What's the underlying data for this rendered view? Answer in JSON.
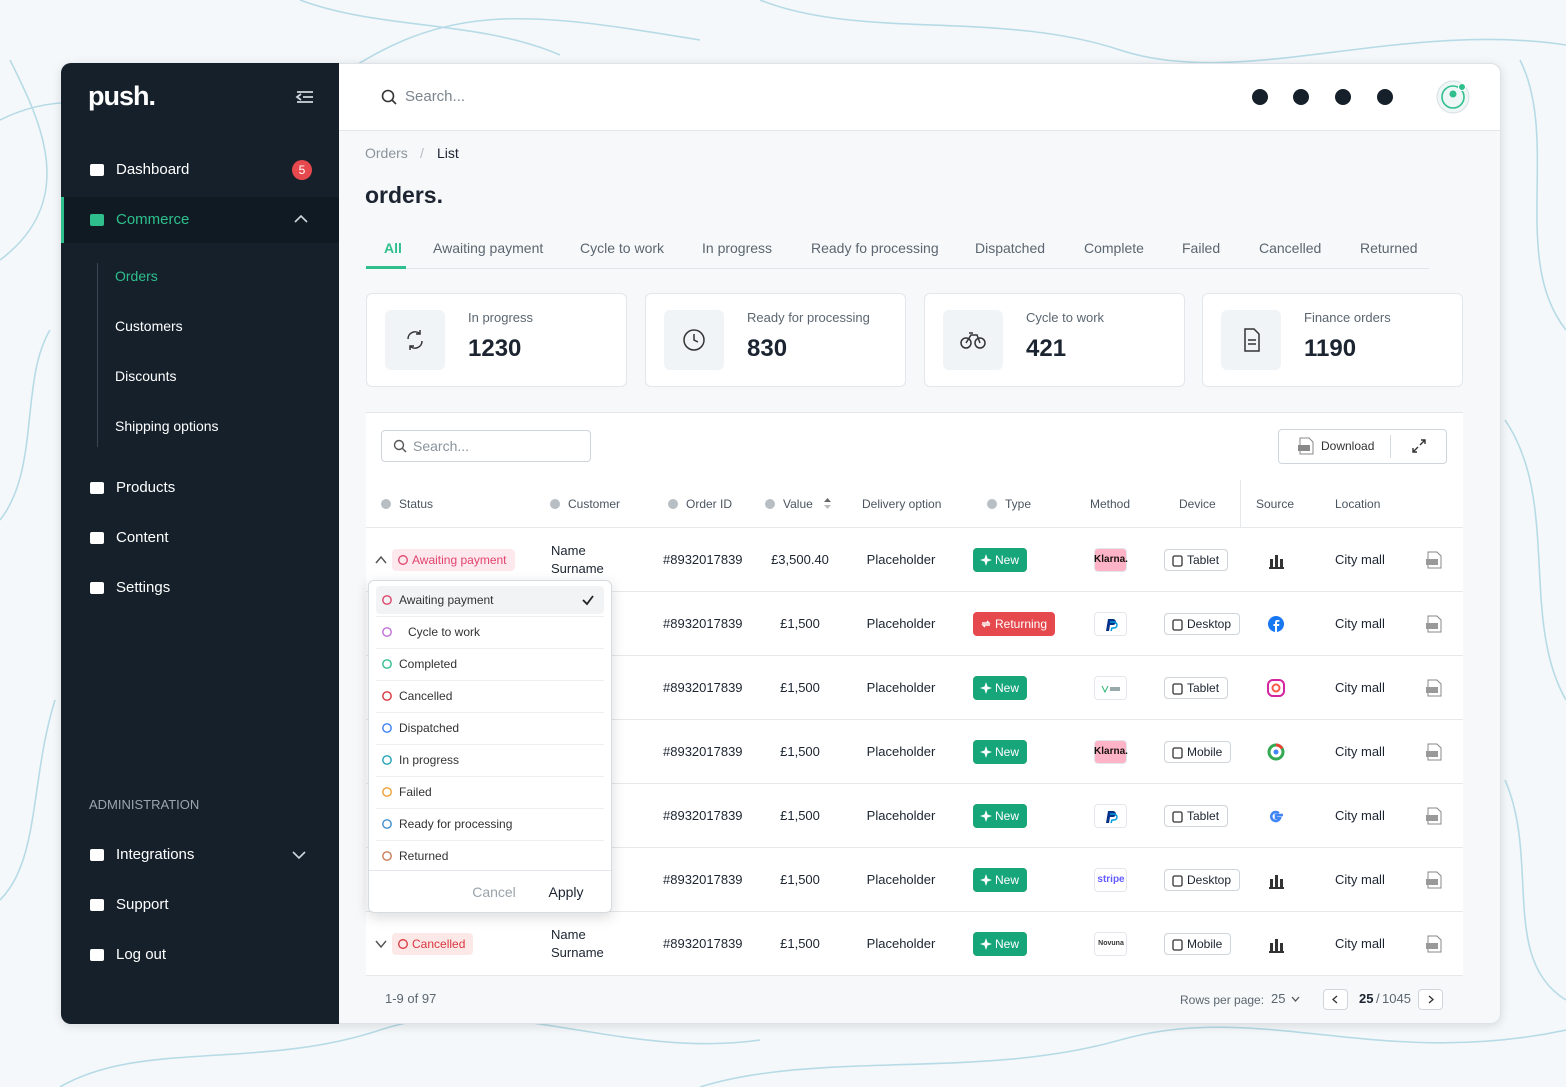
{
  "sidebar": {
    "logo": "push.",
    "nav": [
      {
        "label": "Dashboard",
        "badge": 5
      },
      {
        "label": "Commerce",
        "active": true,
        "children": [
          "Orders",
          "Customers",
          "Discounts",
          "Shipping options"
        ],
        "active_child": 0
      },
      {
        "label": "Products"
      },
      {
        "label": "Content"
      },
      {
        "label": "Settings"
      }
    ],
    "section_title": "ADMINISTRATION",
    "admin_nav": [
      "Integrations",
      "Support",
      "Log out"
    ]
  },
  "topbar": {
    "search_placeholder": "Search..."
  },
  "breadcrumb": {
    "items": [
      "Orders",
      "List"
    ],
    "separator": "/"
  },
  "page_title": "orders.",
  "tabs": {
    "items": [
      "All",
      "Awaiting payment",
      "Cycle to work",
      "In progress",
      "Ready fo processing",
      "Dispatched",
      "Complete",
      "Failed",
      "Cancelled",
      "Returned"
    ],
    "active": 0
  },
  "stats": [
    {
      "label": "In progress",
      "value": 1230
    },
    {
      "label": "Ready for processing",
      "value": 830
    },
    {
      "label": "Cycle to work",
      "value": 421
    },
    {
      "label": "Finance orders",
      "value": 1190
    }
  ],
  "table": {
    "search_placeholder": "Search...",
    "download": "Download",
    "columns": [
      {
        "label": "Status",
        "info": true
      },
      {
        "label": "Customer",
        "info": true
      },
      {
        "label": "Order ID",
        "info": true
      },
      {
        "label": "Value",
        "info": true,
        "sortable": true
      },
      {
        "label": "Delivery option"
      },
      {
        "label": "Type",
        "info": true
      },
      {
        "label": "Method"
      },
      {
        "label": "Device"
      },
      {
        "label": "Source"
      },
      {
        "label": "Location"
      }
    ],
    "rows": [
      {
        "status": "Awaiting payment",
        "customer": "Name Surname",
        "order_id": "#8932017839",
        "value": "£3,500.40",
        "delivery": "Placeholder",
        "type": "New",
        "method": "Klarna.",
        "device": "Tablet",
        "location": "City mall"
      },
      {
        "order_id": "#8932017839",
        "value": "£1,500",
        "delivery": "Placeholder",
        "type": "Returning",
        "device": "Desktop",
        "location": "City mall"
      },
      {
        "order_id": "#8932017839",
        "value": "£1,500",
        "delivery": "Placeholder",
        "type": "New",
        "device": "Tablet",
        "location": "City mall"
      },
      {
        "order_id": "#8932017839",
        "value": "£1,500",
        "delivery": "Placeholder",
        "type": "New",
        "method": "Klarna.",
        "device": "Mobile",
        "location": "City mall"
      },
      {
        "order_id": "#8932017839",
        "value": "£1,500",
        "delivery": "Placeholder",
        "type": "New",
        "device": "Tablet",
        "location": "City mall"
      },
      {
        "order_id": "#8932017839",
        "value": "£1,500",
        "delivery": "Placeholder",
        "type": "New",
        "method": "stripe",
        "device": "Desktop",
        "location": "City mall"
      },
      {
        "status": "Cancelled",
        "customer": "Name Surname",
        "order_id": "#8932017839",
        "value": "£1,500",
        "delivery": "Placeholder",
        "type": "New",
        "method": "Novuna",
        "device": "Mobile",
        "location": "City mall"
      }
    ]
  },
  "status_menu": {
    "options": [
      "Awaiting payment",
      "Cycle to work",
      "Completed",
      "Cancelled",
      "Dispatched",
      "In progress",
      "Failed",
      "Ready for processing",
      "Returned"
    ],
    "selected": 0,
    "cancel": "Cancel",
    "apply": "Apply"
  },
  "footer": {
    "range": "1-9 of 97",
    "rows_per_page_label": "Rows per page:",
    "rows_per_page": 25,
    "page": 25,
    "page_separator": "/",
    "pages": 1045
  }
}
